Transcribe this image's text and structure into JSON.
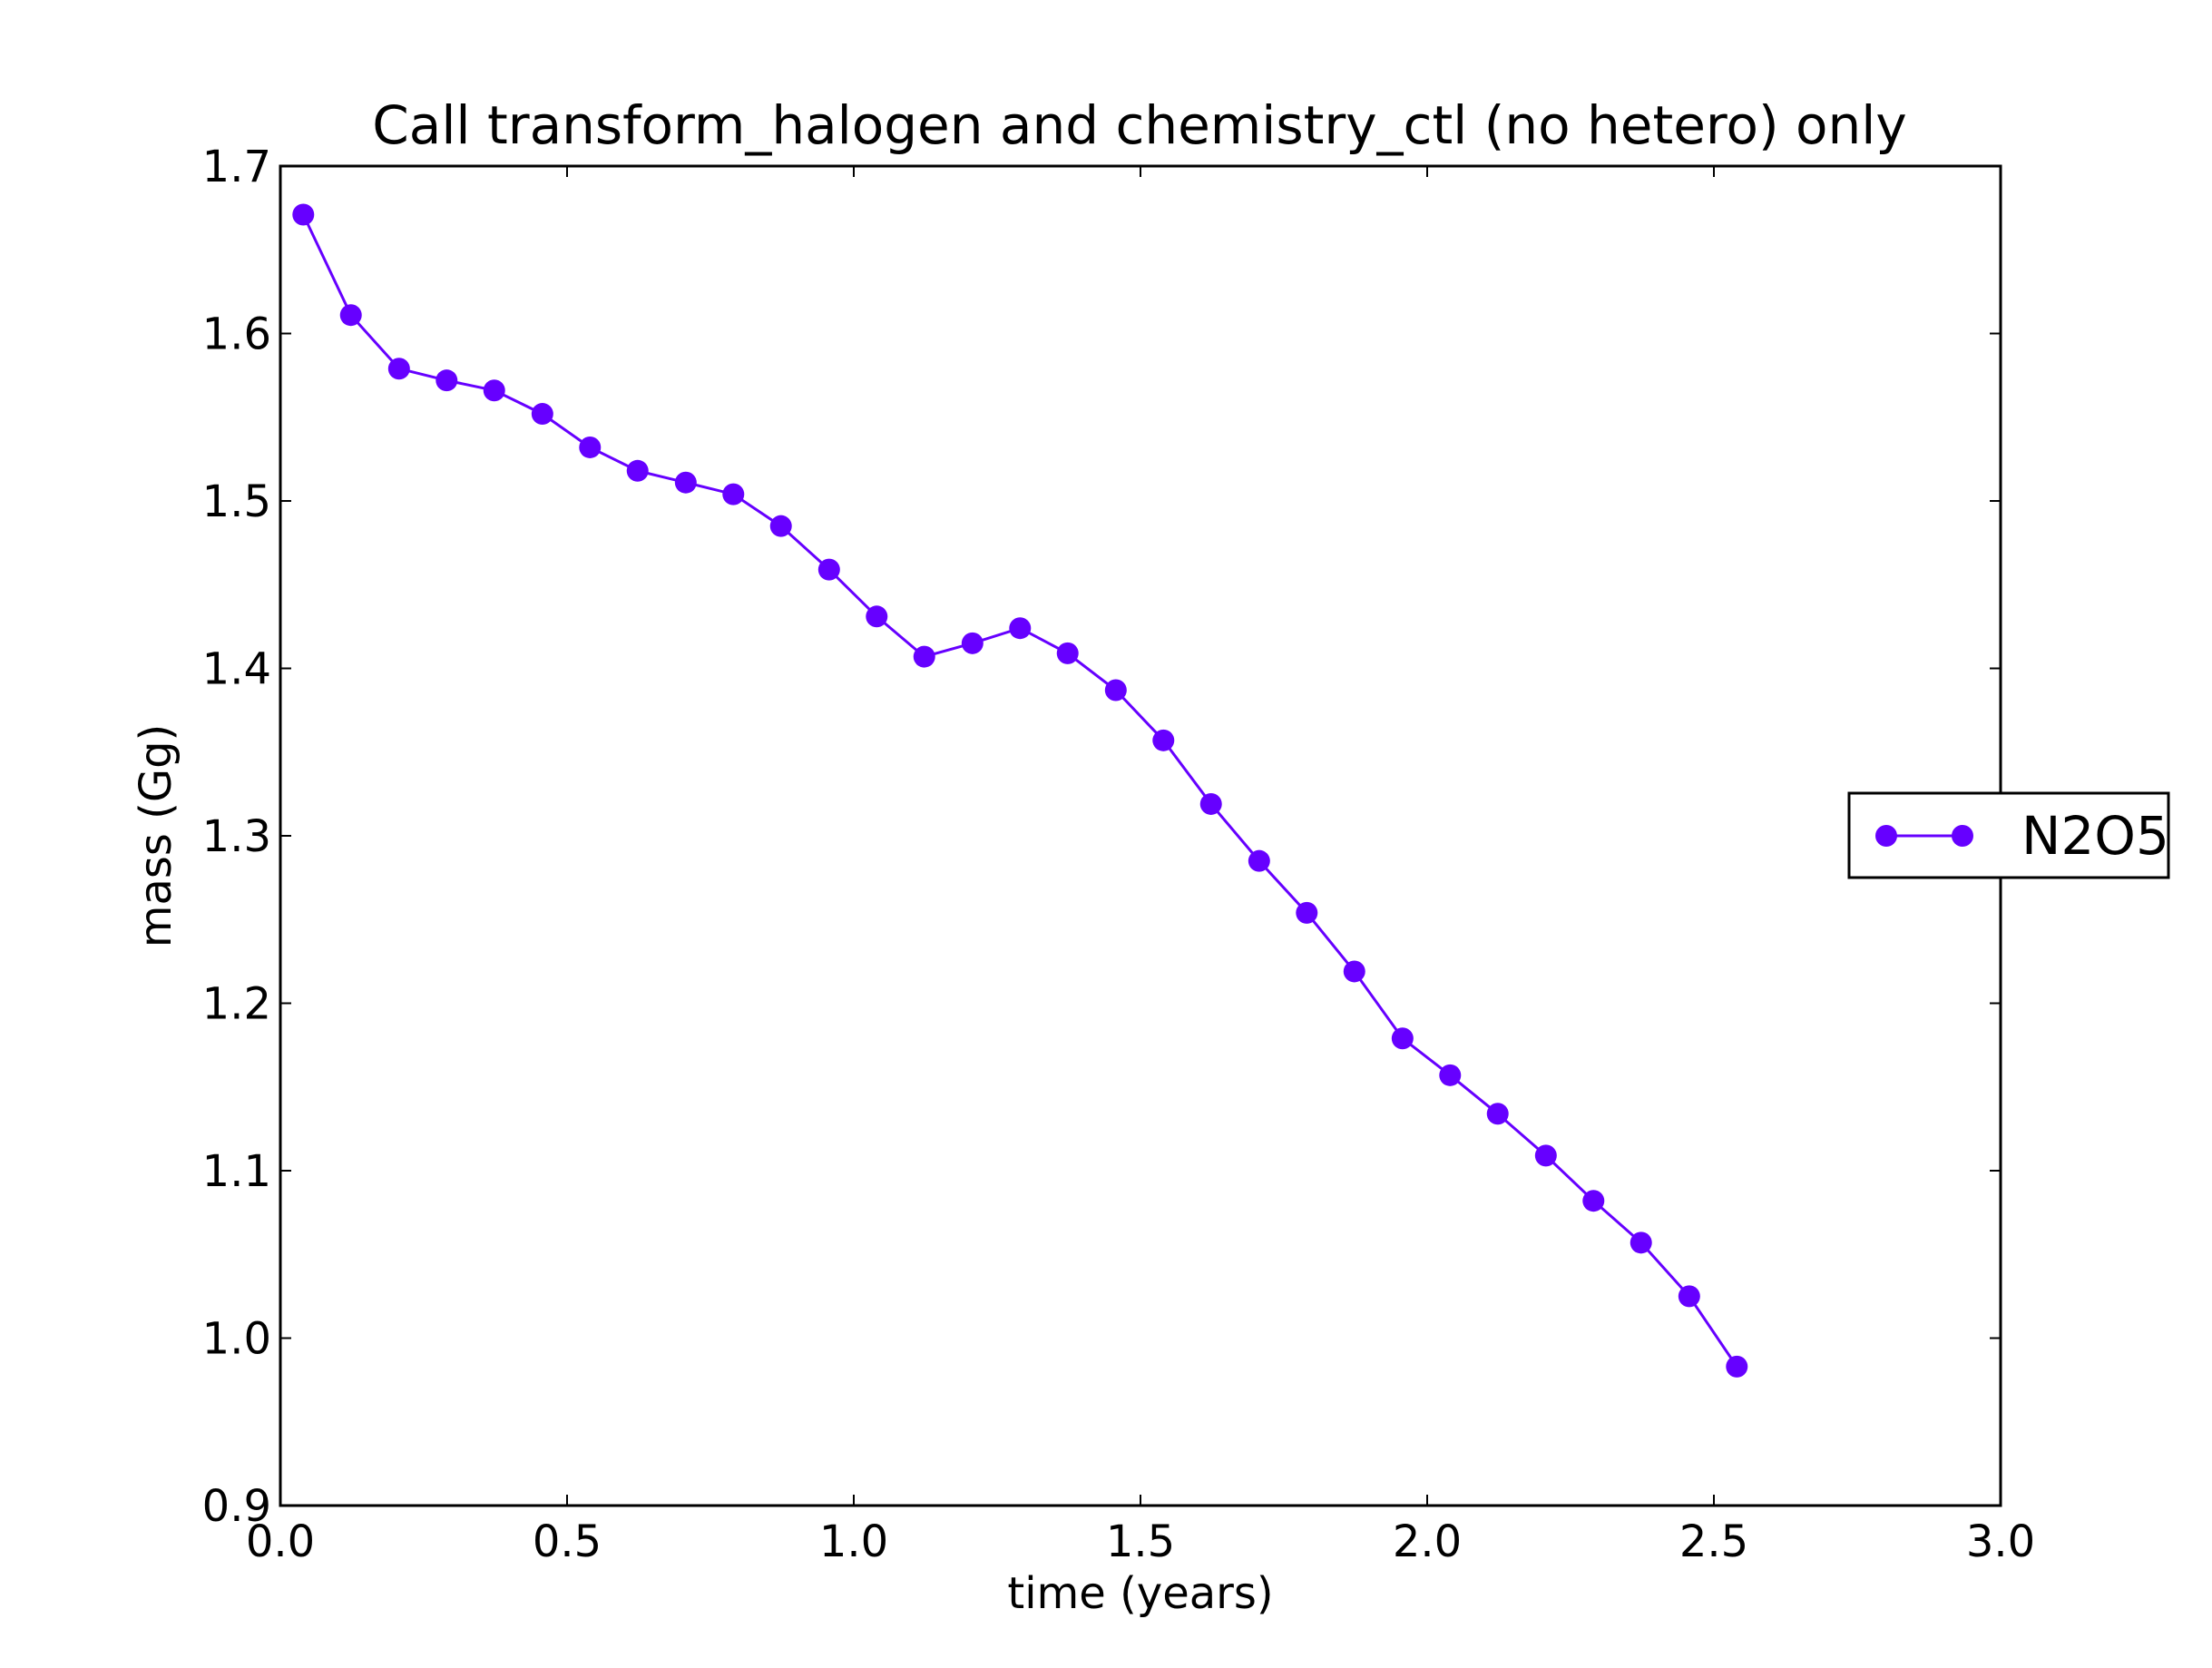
{
  "chart_data": {
    "type": "line",
    "title": "Call transform_halogen and chemistry_ctl (no hetero) only",
    "xlabel": "time (years)",
    "ylabel": "mass (Gg)",
    "xlim": [
      0.0,
      3.0
    ],
    "ylim": [
      0.9,
      1.7
    ],
    "xticks": [
      0.0,
      0.5,
      1.0,
      1.5,
      2.0,
      2.5,
      3.0
    ],
    "xtick_labels": [
      "0.0",
      "0.5",
      "1.0",
      "1.5",
      "2.0",
      "2.5",
      "3.0"
    ],
    "yticks": [
      0.9,
      1.0,
      1.1,
      1.2,
      1.3,
      1.4,
      1.5,
      1.6,
      1.7
    ],
    "ytick_labels": [
      "0.9",
      "1.0",
      "1.1",
      "1.2",
      "1.3",
      "1.4",
      "1.5",
      "1.6",
      "1.7"
    ],
    "grid": false,
    "legend_position": "outside-right",
    "series": [
      {
        "name": "N2O5",
        "color": "#6600ff",
        "marker": "circle",
        "x": [
          0.04,
          0.123,
          0.207,
          0.29,
          0.373,
          0.457,
          0.54,
          0.623,
          0.707,
          0.79,
          0.873,
          0.957,
          1.04,
          1.123,
          1.207,
          1.29,
          1.373,
          1.457,
          1.54,
          1.623,
          1.707,
          1.79,
          1.873,
          1.957,
          2.04,
          2.123,
          2.207,
          2.29,
          2.373,
          2.457,
          2.54
        ],
        "y": [
          1.671,
          1.611,
          1.579,
          1.572,
          1.566,
          1.552,
          1.532,
          1.518,
          1.511,
          1.504,
          1.485,
          1.459,
          1.431,
          1.407,
          1.415,
          1.424,
          1.409,
          1.387,
          1.357,
          1.319,
          1.285,
          1.254,
          1.219,
          1.179,
          1.157,
          1.134,
          1.109,
          1.082,
          1.057,
          1.025,
          0.983
        ]
      }
    ]
  }
}
